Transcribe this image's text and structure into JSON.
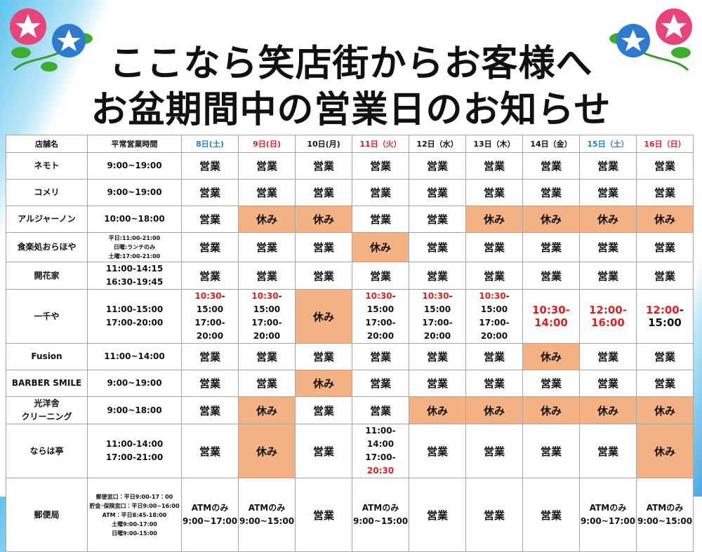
{
  "title": [
    "ここなら笑店街からお客様へ",
    "お盆期間中の営業日のお知らせ"
  ],
  "table": {
    "header": [
      "店舗名",
      "平常営業時間",
      {
        "text": "8日(土)",
        "color": "#1f7fd0"
      },
      {
        "text": "9日(日)",
        "color": "#e02020"
      },
      "10日(月)",
      {
        "text": "11日（火）",
        "color": "#e02020"
      },
      "12日（水）",
      "13日（木）",
      "14日（金）",
      {
        "text": "15日（土）",
        "color": "#1f7fd0"
      },
      {
        "text": "16日（日）",
        "color": "#e02020"
      }
    ],
    "rows": [
      {
        "name": "ネモト",
        "hours": "9:00~19:00",
        "days": [
          "営業",
          "営業",
          "営業",
          "営業",
          "営業",
          "営業",
          "営業",
          "営業",
          "営業"
        ]
      },
      {
        "name": "コメリ",
        "hours": "9:00~19:00",
        "days": [
          "営業",
          "営業",
          "営業",
          "営業",
          "営業",
          "営業",
          "営業",
          "営業",
          "営業"
        ]
      },
      {
        "name": "アルジャーノン",
        "hours": "10:00~18:00",
        "days": [
          "営業",
          {
            "text": "休み",
            "fill": "#f4b183"
          },
          {
            "text": "休み",
            "fill": "#f4b183"
          },
          "営業",
          "営業",
          {
            "text": "休み",
            "fill": "#f4b183"
          },
          {
            "text": "休み",
            "fill": "#f4b183"
          },
          {
            "text": "休み",
            "fill": "#f4b183"
          },
          {
            "text": "休み",
            "fill": "#f4b183"
          }
        ]
      },
      {
        "name": "食楽処おらほや",
        "hours": [
          "平日:11:00-21:00",
          "日曜:ランチのみ",
          "土曜:17:00-21:00"
        ],
        "days": [
          "営業",
          "営業",
          "営業",
          {
            "text": "休み",
            "fill": "#f4b183"
          },
          "営業",
          "営業",
          "営業",
          "営業",
          "営業"
        ]
      },
      {
        "name": "開花家",
        "hours": [
          "11:00-14:15",
          "16:30-19:45"
        ],
        "days": [
          "営業",
          "営業",
          "営業",
          "営業",
          "営業",
          "営業",
          "営業",
          "営業",
          "営業"
        ]
      },
      {
        "name": "一千や",
        "hours": [
          "11:00-15:00",
          "17:00-20:00"
        ],
        "days": [
          [
            [
              {
                "text": "10:30",
                "color": "#e02020"
              },
              "-15:00"
            ],
            "17:00-20:00"
          ],
          [
            [
              {
                "text": "10:30",
                "color": "#e02020"
              },
              "-15:00"
            ],
            "17:00-20:00"
          ],
          {
            "text": "休み",
            "fill": "#f4b183"
          },
          [
            [
              {
                "text": "10:30",
                "color": "#e02020"
              },
              "-15:00"
            ],
            "17:00-20:00"
          ],
          [
            [
              {
                "text": "10:30",
                "color": "#e02020"
              },
              "-15:00"
            ],
            "17:00-20:00"
          ],
          [
            [
              {
                "text": "10:30",
                "color": "#e02020"
              },
              "-15:00"
            ],
            "17:00-20:00"
          ],
          [
            [
              {
                "text": "10:30-14:00",
                "color": "#e02020"
              }
            ]
          ],
          [
            [
              {
                "text": "12:00-16:00",
                "color": "#e02020"
              }
            ]
          ],
          [
            [
              {
                "text": "12:00",
                "color": "#e02020"
              },
              "-15:00"
            ]
          ]
        ]
      },
      {
        "name": "Fusion",
        "hours": "11:00~14:00",
        "days": [
          "営業",
          "営業",
          "営業",
          "営業",
          "営業",
          "営業",
          {
            "text": "休み",
            "fill": "#f4b183"
          },
          "営業",
          "営業"
        ]
      },
      {
        "name": "BARBER SMILE",
        "hours": "9:00~19:00",
        "days": [
          "営業",
          "営業",
          {
            "text": "休み",
            "fill": "#f4b183"
          },
          "営業",
          "営業",
          "営業",
          "営業",
          "営業",
          "営業"
        ]
      },
      {
        "name": [
          "光洋舎",
          "クリーニング"
        ],
        "hours": "9:00~18:00",
        "days": [
          "営業",
          {
            "text": "休み",
            "fill": "#f4b183"
          },
          "営業",
          "営業",
          {
            "text": "休み",
            "fill": "#f4b183"
          },
          {
            "text": "休み",
            "fill": "#f4b183"
          },
          {
            "text": "休み",
            "fill": "#f4b183"
          },
          {
            "text": "休み",
            "fill": "#f4b183"
          },
          {
            "text": "休み",
            "fill": "#f4b183"
          }
        ]
      },
      {
        "name": "ならは亭",
        "hours": [
          "11:00-14:00",
          "17:00-21:00"
        ],
        "days": [
          "営業",
          {
            "text": "休み",
            "fill": "#f4b183"
          },
          "営業",
          [
            "11:00-14:00",
            [
              "17:00-",
              {
                "text": "20:30",
                "color": "#e02020"
              }
            ]
          ],
          "営業",
          "営業",
          "営業",
          "営業",
          {
            "text": "休み",
            "fill": "#f4b183"
          }
        ]
      },
      {
        "name": "郵便局",
        "hours": [
          "郵便窓口：平日9:00-17：00",
          "貯金･保険窓口：平日9:00~16:00",
          "ATM：平日8:45-18:00",
          "土曜9:00-17:00",
          "日曜9:00-15:00"
        ],
        "days": [
          [
            "ATMのみ",
            "9:00~17:00"
          ],
          [
            "ATMのみ",
            "9:00~15:00"
          ],
          "営業",
          [
            "ATMのみ",
            "9:00~15:00"
          ],
          "営業",
          "営業",
          "営業",
          [
            "ATMのみ",
            "9:00~17:00"
          ],
          [
            "ATMのみ",
            "9:00~15:00"
          ]
        ]
      }
    ]
  }
}
